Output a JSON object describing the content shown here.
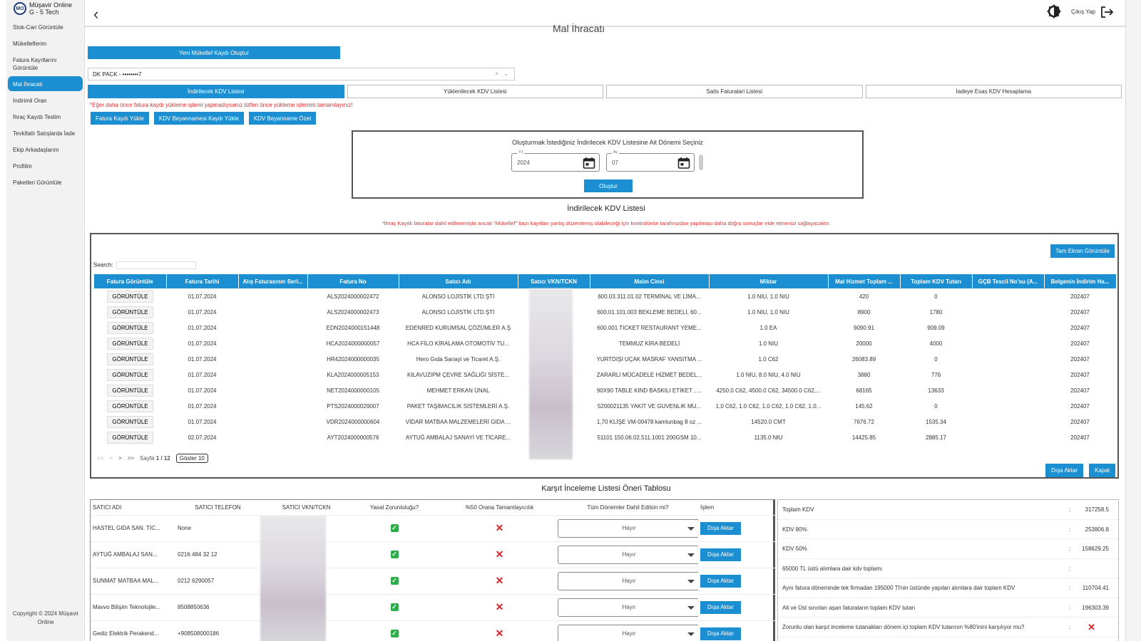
{
  "brand": {
    "logo_text": "MO",
    "name": "Müşavir Online",
    "sub": "G - 5 Tech"
  },
  "sidebar": {
    "items": [
      {
        "label": "Stok-Cari Görüntüle"
      },
      {
        "label": "Mükelleflerim"
      },
      {
        "label": "Fatura Kayıtlarını Görüntüle"
      },
      {
        "label": "Mal İhracatı",
        "active": true
      },
      {
        "label": "İndirimli Oran"
      },
      {
        "label": "İhraç Kayıtlı Teslim"
      },
      {
        "label": "Tevkifatlı Satışlarda İade"
      },
      {
        "label": "Ekip Arkadaşlarım"
      },
      {
        "label": "Profilim"
      },
      {
        "label": "Paketleri Görüntüle"
      }
    ],
    "copyright": "Copyright © 2024 Müşavir Online"
  },
  "topbar": {
    "logout_label": "Çıkış Yap"
  },
  "page": {
    "title": "Mal İhracatı",
    "new_record_button": "Yeni Mükellef Kaydı Oluştur",
    "selected_company": "DK PACK - ••••••••7",
    "tabs": [
      {
        "label": "İndirilecek KDV Listesi",
        "active": true
      },
      {
        "label": "Yüklenilecek KDV Listesi"
      },
      {
        "label": "Satis Faturalari Listesi"
      },
      {
        "label": "İadeye Esas KDV Hesaplama"
      }
    ],
    "warning_top": "*Eğer daha önce fatura kaydı yükleme işlemi yapmadıysanız lütfen önce yükleme işlemini tamamlayınız!",
    "action_buttons": [
      "Fatura Kaydı Yükle",
      "KDV Beyannamesi Kaydı Yükle",
      "KDV Beyanname Özet"
    ]
  },
  "period": {
    "title": "Oluşturmak İstediğiniz İndirilecek KDV Listesine Ait Dönemi Seçiniz",
    "year_label": "Yıl",
    "year_value": "2024",
    "month_label": "Ay",
    "month_value": "07",
    "create_button": "Oluştur"
  },
  "list": {
    "title": "İndirilecek KDV Listesi",
    "warning": "*İhraç Kayıtlı faturalar dahil edilmemiştir ancak \"Mükellef\" bazı kayıtları yanlış düzenlemiş olabileceği için kontrolünün tarafınızdan yapılması daha doğru sonuçlar elde etmenizi sağlayacaktır.",
    "fullscreen_button": "Tam Ekran Görüntüle",
    "search_label": "Search:",
    "columns": [
      "Fatura Görüntüle",
      "Fatura Tarihi",
      "Alış Faturasının Seri...",
      "Fatura No",
      "Satıcı Adı",
      "Satıcı VKN/TCKN",
      "Malın Cinsi",
      "Miktar",
      "Mal Hizmet Toplam ...",
      "Toplam KDV Tutarı",
      "GÇB Tescil No'su (A...",
      "Belgenin İndirim Ha..."
    ],
    "view_button": "GÖRÜNTÜLE",
    "rows": [
      {
        "date": "01.07.2024",
        "seri": "",
        "no": "ALS2024000002472",
        "satici": "ALONSO LOJİSTİK LTD.ŞTİ",
        "vkn": "",
        "cins": "600.03.311.01.02 TERMİNAL VE LİMA...",
        "miktar": "1.0 NIU, 1.0 NIU",
        "toplam": "420",
        "kdv": "0",
        "gcb": "",
        "donem": "202407"
      },
      {
        "date": "01.07.2024",
        "seri": "",
        "no": "ALS2024000002473",
        "satici": "ALONSO LOJİSTİK LTD.ŞTİ",
        "vkn": "",
        "cins": "600.01.101.003 BEKLEME BEDELİ, 60...",
        "miktar": "1.0 NIU, 1.0 NIU",
        "toplam": "8900",
        "kdv": "1780",
        "gcb": "",
        "donem": "202407"
      },
      {
        "date": "01.07.2024",
        "seri": "",
        "no": "EDN2024000151448",
        "satici": "EDENRED KURUMSAL ÇÖZÜMLER A.Ş",
        "vkn": "",
        "cins": "600.001 TICKET RESTAURANT YEME...",
        "miktar": "1.0 EA",
        "toplam": "9090.91",
        "kdv": "909.09",
        "gcb": "",
        "donem": "202407"
      },
      {
        "date": "01.07.2024",
        "seri": "",
        "no": "HCA2024000000057",
        "satici": "HCA FİLO KİRALAMA OTOMOTİV TU...",
        "vkn": "",
        "cins": "TEMMUZ KİRA BEDELİ",
        "miktar": "1.0 NIU",
        "toplam": "20000",
        "kdv": "4000",
        "gcb": "",
        "donem": "202407"
      },
      {
        "date": "01.07.2024",
        "seri": "",
        "no": "HR42024000000035",
        "satici": "Hero Gıda Sanayi ve Ticaret A.Ş.",
        "vkn": "",
        "cins": "YURTDIŞI UÇAK MASRAF YANSITMA ...",
        "miktar": "1.0 C62",
        "toplam": "26083.89",
        "kdv": "0",
        "gcb": "",
        "donem": "202407"
      },
      {
        "date": "01.07.2024",
        "seri": "",
        "no": "KLA2024000005153",
        "satici": "KILAVUZIPM ÇEVRE SAĞLIĞI SİSTE...",
        "vkn": "",
        "cins": "ZARARLI MÜCADELE HİZMET BEDEL...",
        "miktar": "1.0 NIU, 8.0 NIU, 4.0 NIU",
        "toplam": "3880",
        "kdv": "776",
        "gcb": "",
        "donem": "202407"
      },
      {
        "date": "01.07.2024",
        "seri": "",
        "no": "NET2024000000105",
        "satici": "MEHMET ERKAN ÜNAL",
        "vkn": "",
        "cins": "90X90 TABLE KIND BASKILI ETİKET , ...",
        "miktar": "4250.0 C62, 4500.0 C62, 34500.0 C62,...",
        "toplam": "68165",
        "kdv": "13633",
        "gcb": "",
        "donem": "202407"
      },
      {
        "date": "01.07.2024",
        "seri": "",
        "no": "PTS2024000029007",
        "satici": "PAKET TAŞIMACILIK SİSTEMLERİ A.Ş.",
        "vkn": "",
        "cins": "5200021135 YAKIT VE GUVENLIK MU...",
        "miktar": "1.0 C62, 1.0 C62, 1.0 C62, 1.0 C62, 1.0...",
        "toplam": "145.62",
        "kdv": "0",
        "gcb": "",
        "donem": "202407"
      },
      {
        "date": "01.07.2024",
        "seri": "",
        "no": "VDR2024000000604",
        "satici": "VİDAR MATBAA MALZEMELERİ GIDA ...",
        "vkn": "",
        "cins": "1,70 KLİŞE VM-00478 kamlunbag 8 oz ...",
        "miktar": "14520.0 CMT",
        "toplam": "7676.72",
        "kdv": "1535.34",
        "gcb": "",
        "donem": "202407"
      },
      {
        "date": "02.07.2024",
        "seri": "",
        "no": "AYT2024000000576",
        "satici": "AYTUĞ AMBALAJ SANAYİ VE TİCARE...",
        "vkn": "",
        "cins": "51101 150.06.02.511.1001 200GSM 10...",
        "miktar": "1135.0 NIU",
        "toplam": "14425.85",
        "kdv": "2885.17",
        "gcb": "",
        "donem": "202407"
      }
    ],
    "pager": {
      "first": "<<",
      "prev": "<",
      "next": ">",
      "last": ">>",
      "page_prefix": "Sayfa",
      "page_text": "1 / 12",
      "show": "Göster 10"
    },
    "export_button": "Dışa Aktar",
    "close_button": "Kapat"
  },
  "karsit": {
    "title": "Karşıt İnceleme Listesi Öneri Tablosu",
    "columns": [
      "SATICI ADI",
      "SATICI TELEFON",
      "SATICI VKN/TCKN",
      "Yasal Zorunluluğu?",
      "%50 Orana Tamamlayıcılık",
      "Tüm Dönemler Dahil Edilsin mi?",
      "İşlem"
    ],
    "dropdown_value": "Hayır",
    "export_button": "Dışa Aktar",
    "rows": [
      {
        "name": "HASTEL GIDA SAN. TİC...",
        "phone": "None"
      },
      {
        "name": "AYTUĞ AMBALAJ SAN...",
        "phone": "0216 484 32 12"
      },
      {
        "name": "SUNMAT MATBAA MAL...",
        "phone": "0212 6290057"
      },
      {
        "name": "Mavvo Bilişim Teknolojile...",
        "phone": "8508850636"
      },
      {
        "name": "Gediz Elektrik Perakend...",
        "phone": "+908508000186"
      }
    ]
  },
  "summary": {
    "separator": ":",
    "rows": [
      {
        "label": "Toplam KDV",
        "value": "317258.5"
      },
      {
        "label": "KDV 80%",
        "value": "253806.8"
      },
      {
        "label": "KDV 50%",
        "value": "158629.25"
      },
      {
        "label": "65000 TL üstü alımlara dair kdv toplamı",
        "value": ""
      },
      {
        "label": "Aynı fatura döneminde tek firmadan 195000 Tl'nin üstünde yapılan alımlara dair toplam KDV",
        "value": "110704.41"
      },
      {
        "label": "Alt ve Üst sınırları aşan faturaların toplam KDV tutarı",
        "value": "196303.39"
      },
      {
        "label": "Zorunlu olan karşıt inceleme tutanakları dönem içi toplam KDV tutarının %80'inini karşılıyor mu?",
        "value": "✕"
      }
    ]
  },
  "colors": {
    "accent": "#1b8fd2",
    "warning": "#e03030",
    "success": "#2eae4b"
  }
}
